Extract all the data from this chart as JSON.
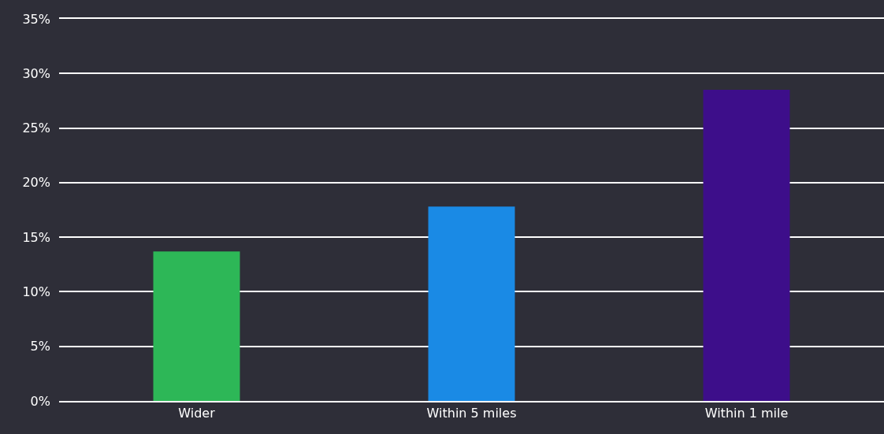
{
  "chart_data": {
    "type": "bar",
    "categories": [
      "Wider",
      "Within 5 miles",
      "Within 1 mile"
    ],
    "values": [
      13.7,
      17.8,
      28.5
    ],
    "colors": [
      "#2db757",
      "#1a8ae5",
      "#3d0e8a"
    ],
    "ylim": [
      0,
      35
    ],
    "yticks": [
      {
        "value": 0,
        "label": "0%"
      },
      {
        "value": 5,
        "label": "5%"
      },
      {
        "value": 10,
        "label": "10%"
      },
      {
        "value": 15,
        "label": "15%"
      },
      {
        "value": 20,
        "label": "20%"
      },
      {
        "value": 25,
        "label": "25%"
      },
      {
        "value": 30,
        "label": "30%"
      },
      {
        "value": 35,
        "label": "35%"
      }
    ],
    "grid": "y"
  }
}
